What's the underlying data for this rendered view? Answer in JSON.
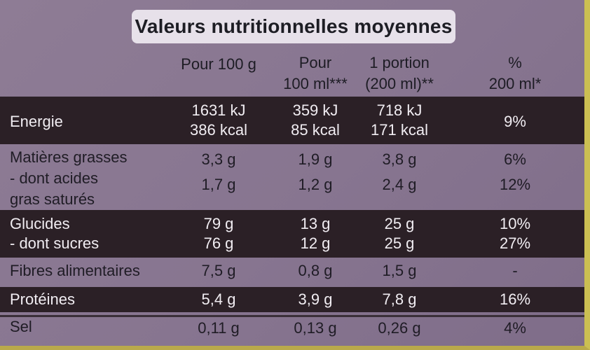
{
  "table": {
    "title": "Valeurs nutritionnelles moyennes",
    "headers": {
      "col1": [
        "",
        "Pour 100 g"
      ],
      "col2": [
        "Pour",
        "100 ml***"
      ],
      "col3": [
        "1 portion",
        "(200 ml)**"
      ],
      "col4": [
        "%",
        "200 ml*"
      ]
    },
    "rows": {
      "energie": {
        "label": "Energie",
        "c1": [
          "1631 kJ",
          "386 kcal"
        ],
        "c2": [
          "359 kJ",
          "85 kcal"
        ],
        "c3": [
          "718 kJ",
          "171 kcal"
        ],
        "c4": "9%"
      },
      "matieres": {
        "label1": "Matières grasses",
        "label2": "- dont acides",
        "label3": "gras saturés",
        "c1": [
          "3,3 g",
          "1,7 g"
        ],
        "c2": [
          "1,9 g",
          "1,2 g"
        ],
        "c3": [
          "3,8 g",
          "2,4 g"
        ],
        "c4": [
          "6%",
          "12%"
        ]
      },
      "glucides": {
        "label1": "Glucides",
        "label2": "- dont sucres",
        "c1": [
          "79 g",
          "76 g"
        ],
        "c2": [
          "13 g",
          "12 g"
        ],
        "c3": [
          "25 g",
          "25 g"
        ],
        "c4": [
          "10%",
          "27%"
        ]
      },
      "fibres": {
        "label": "Fibres alimentaires",
        "c1": "7,5 g",
        "c2": "0,8 g",
        "c3": "1,5 g",
        "c4": "-"
      },
      "proteines": {
        "label": "Protéines",
        "c1": "5,4 g",
        "c2": "3,9 g",
        "c3": "7,8 g",
        "c4": "16%"
      },
      "sel": {
        "label": "Sel",
        "c1": "0,11 g",
        "c2": "0,13 g",
        "c3": "0,26 g",
        "c4": "4%"
      }
    }
  }
}
